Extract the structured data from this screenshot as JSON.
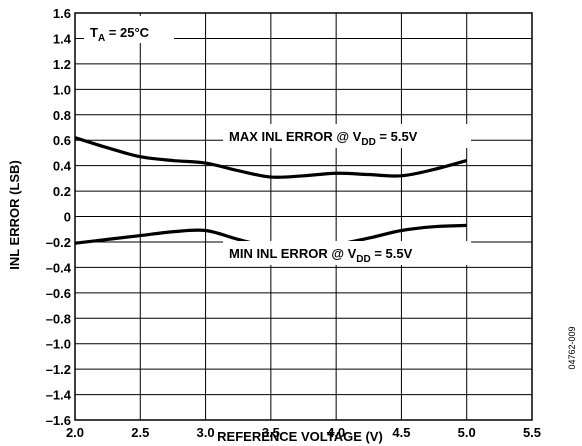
{
  "chart_data": {
    "type": "line",
    "xlabel": "REFERENCE VOLTAGE (V)",
    "ylabel": "INL ERROR (LSB)",
    "xlim": [
      2.0,
      5.5
    ],
    "ylim": [
      -1.6,
      1.6
    ],
    "x_ticks": [
      2.0,
      2.5,
      3.0,
      3.5,
      4.0,
      4.5,
      5.0,
      5.5
    ],
    "y_ticks": [
      1.6,
      1.4,
      1.2,
      1.0,
      0.8,
      0.6,
      0.4,
      0.2,
      0,
      -0.2,
      -0.4,
      -0.6,
      -0.8,
      -1.0,
      -1.2,
      -1.4,
      -1.6
    ],
    "x_tick_labels": [
      "2.0",
      "2.5",
      "3.0",
      "3.5",
      "4.0",
      "4.5",
      "5.0",
      "5.5"
    ],
    "y_tick_labels": [
      "1.6",
      "1.4",
      "1.2",
      "1.0",
      "0.8",
      "0.6",
      "0.4",
      "0.2",
      "0",
      "–0.2",
      "–0.4",
      "–0.6",
      "–0.8",
      "–1.0",
      "–1.2",
      "–1.4",
      "–1.6"
    ],
    "grid": true,
    "series": [
      {
        "name": "MAX INL ERROR @ VDD = 5.5V",
        "x": [
          2.0,
          2.25,
          2.5,
          2.75,
          3.0,
          3.25,
          3.5,
          3.75,
          4.0,
          4.25,
          4.5,
          4.75,
          5.0
        ],
        "y": [
          0.62,
          0.54,
          0.47,
          0.44,
          0.42,
          0.36,
          0.31,
          0.32,
          0.34,
          0.33,
          0.32,
          0.37,
          0.44
        ]
      },
      {
        "name": "MIN INL ERROR @ VDD = 5.5V",
        "x": [
          2.0,
          2.25,
          2.5,
          2.75,
          3.0,
          3.25,
          3.5,
          3.75,
          4.0,
          4.25,
          4.5,
          4.75,
          5.0
        ],
        "y": [
          -0.21,
          -0.18,
          -0.15,
          -0.12,
          -0.11,
          -0.18,
          -0.24,
          -0.24,
          -0.22,
          -0.17,
          -0.11,
          -0.08,
          -0.07
        ]
      }
    ],
    "annotations": {
      "condition": {
        "prefix": "T",
        "sub": "A",
        "rest": " = 25°C"
      },
      "max_label": {
        "prefix": "MAX INL ERROR @ V",
        "sub": "DD",
        "rest": " = 5.5V"
      },
      "min_label": {
        "prefix": "MIN INL ERROR @ V",
        "sub": "DD",
        "rest": " = 5.5V"
      }
    },
    "figure_code": "04762-009"
  }
}
